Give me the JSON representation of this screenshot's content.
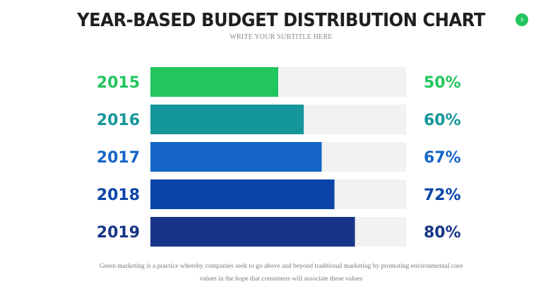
{
  "title": "YEAR-BASED BUDGET DISTRIBUTION CHART",
  "subtitle": "WRITE YOUR SUBTITLE HERE",
  "page_number": "3",
  "footer": {
    "line1": "Green marketing is a practice whereby companies seek to go above and beyond traditional marketing by promoting environmental core",
    "line2": "values in the hope that consumers will associate these values"
  },
  "colors": {
    "track": "#f2f2f2",
    "badge": "#22c55e"
  },
  "chart_data": {
    "type": "bar",
    "orientation": "horizontal",
    "categories": [
      "2015",
      "2016",
      "2017",
      "2018",
      "2019"
    ],
    "values": [
      50,
      60,
      67,
      72,
      80
    ],
    "value_labels": [
      "50%",
      "60%",
      "67%",
      "72%",
      "80%"
    ],
    "colors": [
      "#22c55e",
      "#15969a",
      "#1565c8",
      "#0a44a8",
      "#173587"
    ],
    "xlim": [
      0,
      100
    ],
    "title": "YEAR-BASED BUDGET DISTRIBUTION CHART",
    "subtitle": "WRITE YOUR SUBTITLE HERE",
    "legend": "none",
    "grid": false
  }
}
